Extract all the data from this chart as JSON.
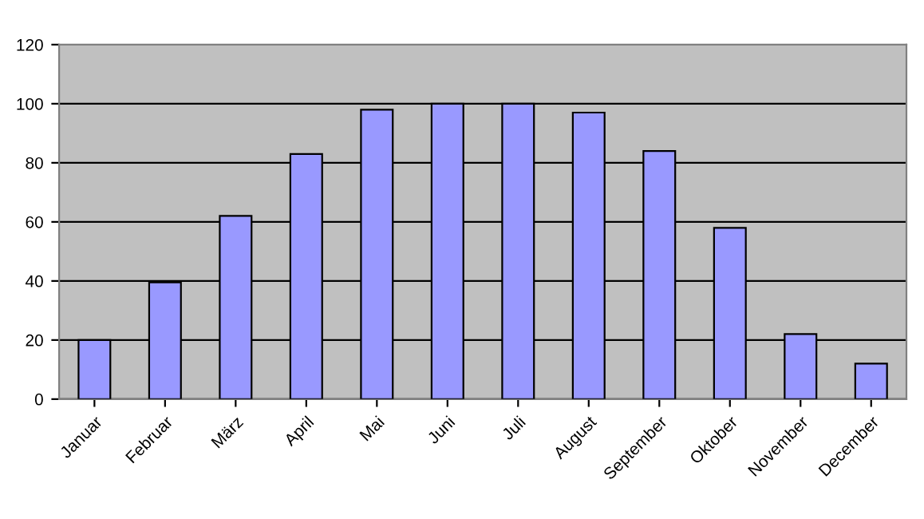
{
  "chart_data": {
    "type": "bar",
    "categories": [
      "Januar",
      "Februar",
      "März",
      "April",
      "Mai",
      "Juni",
      "Juli",
      "August",
      "September",
      "Oktober",
      "November",
      "December"
    ],
    "values": [
      20,
      39.5,
      62,
      83,
      98,
      100,
      100,
      97,
      84,
      58,
      22,
      12
    ],
    "color": "#9999ff",
    "ylim": [
      0,
      120
    ],
    "yticks": [
      0,
      20,
      40,
      60,
      80,
      100,
      120
    ],
    "grid": "y",
    "legend": false
  }
}
